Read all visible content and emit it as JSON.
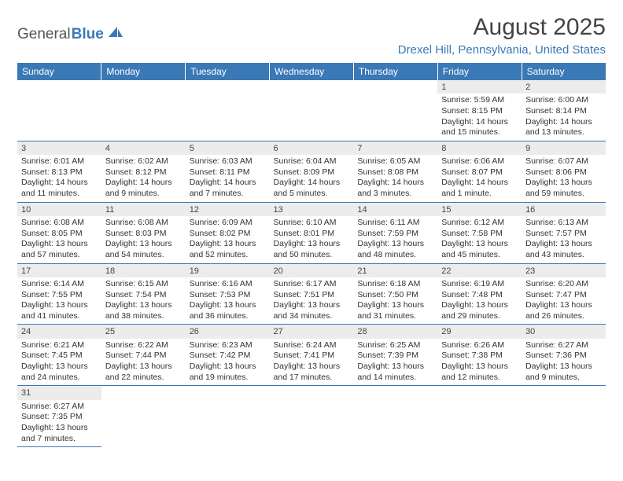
{
  "brand": {
    "part1": "General",
    "part2": "Blue"
  },
  "title": "August 2025",
  "location": "Drexel Hill, Pennsylvania, United States",
  "colors": {
    "accent": "#3a78b6",
    "header_bg": "#3a78b6",
    "header_text": "#ffffff",
    "daynum_bg": "#ececec",
    "text": "#333333",
    "background": "#ffffff"
  },
  "day_headers": [
    "Sunday",
    "Monday",
    "Tuesday",
    "Wednesday",
    "Thursday",
    "Friday",
    "Saturday"
  ],
  "weeks": [
    [
      {
        "n": "",
        "lines": []
      },
      {
        "n": "",
        "lines": []
      },
      {
        "n": "",
        "lines": []
      },
      {
        "n": "",
        "lines": []
      },
      {
        "n": "",
        "lines": []
      },
      {
        "n": "1",
        "lines": [
          "Sunrise: 5:59 AM",
          "Sunset: 8:15 PM",
          "Daylight: 14 hours",
          "and 15 minutes."
        ]
      },
      {
        "n": "2",
        "lines": [
          "Sunrise: 6:00 AM",
          "Sunset: 8:14 PM",
          "Daylight: 14 hours",
          "and 13 minutes."
        ]
      }
    ],
    [
      {
        "n": "3",
        "lines": [
          "Sunrise: 6:01 AM",
          "Sunset: 8:13 PM",
          "Daylight: 14 hours",
          "and 11 minutes."
        ]
      },
      {
        "n": "4",
        "lines": [
          "Sunrise: 6:02 AM",
          "Sunset: 8:12 PM",
          "Daylight: 14 hours",
          "and 9 minutes."
        ]
      },
      {
        "n": "5",
        "lines": [
          "Sunrise: 6:03 AM",
          "Sunset: 8:11 PM",
          "Daylight: 14 hours",
          "and 7 minutes."
        ]
      },
      {
        "n": "6",
        "lines": [
          "Sunrise: 6:04 AM",
          "Sunset: 8:09 PM",
          "Daylight: 14 hours",
          "and 5 minutes."
        ]
      },
      {
        "n": "7",
        "lines": [
          "Sunrise: 6:05 AM",
          "Sunset: 8:08 PM",
          "Daylight: 14 hours",
          "and 3 minutes."
        ]
      },
      {
        "n": "8",
        "lines": [
          "Sunrise: 6:06 AM",
          "Sunset: 8:07 PM",
          "Daylight: 14 hours",
          "and 1 minute."
        ]
      },
      {
        "n": "9",
        "lines": [
          "Sunrise: 6:07 AM",
          "Sunset: 8:06 PM",
          "Daylight: 13 hours",
          "and 59 minutes."
        ]
      }
    ],
    [
      {
        "n": "10",
        "lines": [
          "Sunrise: 6:08 AM",
          "Sunset: 8:05 PM",
          "Daylight: 13 hours",
          "and 57 minutes."
        ]
      },
      {
        "n": "11",
        "lines": [
          "Sunrise: 6:08 AM",
          "Sunset: 8:03 PM",
          "Daylight: 13 hours",
          "and 54 minutes."
        ]
      },
      {
        "n": "12",
        "lines": [
          "Sunrise: 6:09 AM",
          "Sunset: 8:02 PM",
          "Daylight: 13 hours",
          "and 52 minutes."
        ]
      },
      {
        "n": "13",
        "lines": [
          "Sunrise: 6:10 AM",
          "Sunset: 8:01 PM",
          "Daylight: 13 hours",
          "and 50 minutes."
        ]
      },
      {
        "n": "14",
        "lines": [
          "Sunrise: 6:11 AM",
          "Sunset: 7:59 PM",
          "Daylight: 13 hours",
          "and 48 minutes."
        ]
      },
      {
        "n": "15",
        "lines": [
          "Sunrise: 6:12 AM",
          "Sunset: 7:58 PM",
          "Daylight: 13 hours",
          "and 45 minutes."
        ]
      },
      {
        "n": "16",
        "lines": [
          "Sunrise: 6:13 AM",
          "Sunset: 7:57 PM",
          "Daylight: 13 hours",
          "and 43 minutes."
        ]
      }
    ],
    [
      {
        "n": "17",
        "lines": [
          "Sunrise: 6:14 AM",
          "Sunset: 7:55 PM",
          "Daylight: 13 hours",
          "and 41 minutes."
        ]
      },
      {
        "n": "18",
        "lines": [
          "Sunrise: 6:15 AM",
          "Sunset: 7:54 PM",
          "Daylight: 13 hours",
          "and 38 minutes."
        ]
      },
      {
        "n": "19",
        "lines": [
          "Sunrise: 6:16 AM",
          "Sunset: 7:53 PM",
          "Daylight: 13 hours",
          "and 36 minutes."
        ]
      },
      {
        "n": "20",
        "lines": [
          "Sunrise: 6:17 AM",
          "Sunset: 7:51 PM",
          "Daylight: 13 hours",
          "and 34 minutes."
        ]
      },
      {
        "n": "21",
        "lines": [
          "Sunrise: 6:18 AM",
          "Sunset: 7:50 PM",
          "Daylight: 13 hours",
          "and 31 minutes."
        ]
      },
      {
        "n": "22",
        "lines": [
          "Sunrise: 6:19 AM",
          "Sunset: 7:48 PM",
          "Daylight: 13 hours",
          "and 29 minutes."
        ]
      },
      {
        "n": "23",
        "lines": [
          "Sunrise: 6:20 AM",
          "Sunset: 7:47 PM",
          "Daylight: 13 hours",
          "and 26 minutes."
        ]
      }
    ],
    [
      {
        "n": "24",
        "lines": [
          "Sunrise: 6:21 AM",
          "Sunset: 7:45 PM",
          "Daylight: 13 hours",
          "and 24 minutes."
        ]
      },
      {
        "n": "25",
        "lines": [
          "Sunrise: 6:22 AM",
          "Sunset: 7:44 PM",
          "Daylight: 13 hours",
          "and 22 minutes."
        ]
      },
      {
        "n": "26",
        "lines": [
          "Sunrise: 6:23 AM",
          "Sunset: 7:42 PM",
          "Daylight: 13 hours",
          "and 19 minutes."
        ]
      },
      {
        "n": "27",
        "lines": [
          "Sunrise: 6:24 AM",
          "Sunset: 7:41 PM",
          "Daylight: 13 hours",
          "and 17 minutes."
        ]
      },
      {
        "n": "28",
        "lines": [
          "Sunrise: 6:25 AM",
          "Sunset: 7:39 PM",
          "Daylight: 13 hours",
          "and 14 minutes."
        ]
      },
      {
        "n": "29",
        "lines": [
          "Sunrise: 6:26 AM",
          "Sunset: 7:38 PM",
          "Daylight: 13 hours",
          "and 12 minutes."
        ]
      },
      {
        "n": "30",
        "lines": [
          "Sunrise: 6:27 AM",
          "Sunset: 7:36 PM",
          "Daylight: 13 hours",
          "and 9 minutes."
        ]
      }
    ],
    [
      {
        "n": "31",
        "lines": [
          "Sunrise: 6:27 AM",
          "Sunset: 7:35 PM",
          "Daylight: 13 hours",
          "and 7 minutes."
        ]
      },
      {
        "n": "",
        "lines": []
      },
      {
        "n": "",
        "lines": []
      },
      {
        "n": "",
        "lines": []
      },
      {
        "n": "",
        "lines": []
      },
      {
        "n": "",
        "lines": []
      },
      {
        "n": "",
        "lines": []
      }
    ]
  ]
}
